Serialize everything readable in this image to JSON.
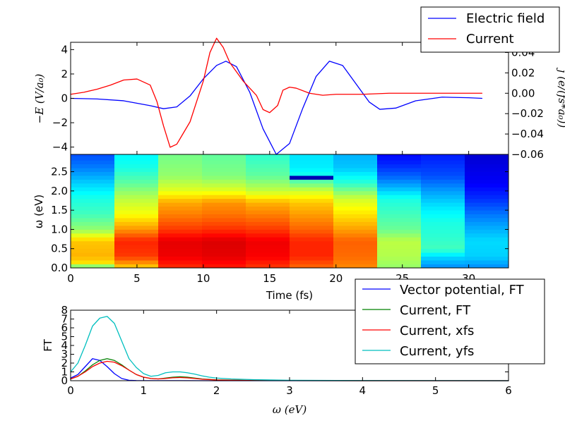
{
  "chart_data": [
    {
      "type": "line",
      "panel": "top",
      "xlim": [
        0,
        33
      ],
      "ylim": [
        -4.6,
        4.6
      ],
      "ylim_right": [
        -0.06,
        0.05
      ],
      "ylabel": "−E (V/a₀)",
      "ylabel_right": "j (e/(fs*a₀))",
      "yticks": [
        "4",
        "2",
        "0",
        "−2",
        "−4"
      ],
      "ytick_values": [
        4,
        2,
        0,
        -2,
        -4
      ],
      "yticks_right": [
        "0.04",
        "0.02",
        "0.00",
        "−0.02",
        "−0.04",
        "−0.06"
      ],
      "ytick_values_right": [
        0.04,
        0.02,
        0.0,
        -0.02,
        -0.04,
        -0.06
      ],
      "legend_position": "top-right",
      "series": [
        {
          "name": "Electric field",
          "color": "#0000ff",
          "axis": "left",
          "x": [
            0,
            2,
            4,
            6,
            7,
            8,
            9,
            10,
            11,
            11.7,
            12.5,
            13.5,
            14.5,
            15.5,
            16.5,
            17.5,
            18.5,
            19.5,
            20.5,
            21.5,
            22.5,
            23.3,
            24.5,
            26,
            28,
            30,
            31
          ],
          "y": [
            0,
            -0.05,
            -0.2,
            -0.6,
            -0.85,
            -0.7,
            0.2,
            1.6,
            2.7,
            3.05,
            2.6,
            0.5,
            -2.5,
            -4.6,
            -3.7,
            -0.8,
            1.8,
            3.05,
            2.7,
            1.2,
            -0.3,
            -0.9,
            -0.8,
            -0.2,
            0.1,
            0.05,
            0
          ]
        },
        {
          "name": "Current",
          "color": "#ff0000",
          "axis": "right",
          "x": [
            0,
            1,
            2,
            3,
            4,
            5,
            6,
            6.5,
            7,
            7.5,
            8,
            9,
            10,
            10.5,
            11,
            11.5,
            12,
            13,
            14,
            14.5,
            15,
            15.6,
            16,
            16.5,
            17,
            18,
            19,
            20,
            22,
            24,
            26,
            28,
            30,
            31
          ],
          "y": [
            -0.001,
            0.001,
            0.004,
            0.008,
            0.013,
            0.014,
            0.008,
            -0.008,
            -0.032,
            -0.053,
            -0.05,
            -0.028,
            0.012,
            0.04,
            0.054,
            0.045,
            0.03,
            0.012,
            -0.002,
            -0.016,
            -0.019,
            -0.012,
            0.003,
            0.006,
            0.005,
            0.0,
            -0.002,
            -0.001,
            -0.001,
            0.0,
            0.0,
            0.0,
            0.0,
            0.0
          ]
        }
      ]
    },
    {
      "type": "heatmap",
      "panel": "middle",
      "xlabel": "Time (fs)",
      "ylabel": "ω (eV)",
      "xlim": [
        0,
        33
      ],
      "ylim": [
        0,
        2.95
      ],
      "xticks": [
        "0",
        "5",
        "10",
        "15",
        "20",
        "25",
        "30"
      ],
      "xtick_values": [
        0,
        5,
        10,
        15,
        20,
        25,
        30
      ],
      "yticks": [
        "0.0",
        "0.5",
        "1.0",
        "1.5",
        "2.0",
        "2.5"
      ],
      "ytick_values": [
        0,
        0.5,
        1.0,
        1.5,
        2.0,
        2.5
      ],
      "colormap": "jet",
      "x_bin_edges": [
        0,
        3.3,
        6.6,
        9.9,
        13.2,
        16.5,
        19.8,
        23.1,
        26.4,
        29.7,
        33.0
      ],
      "y_bin_width": 0.1,
      "column_profiles": [
        {
          "y": [
            0,
            0.1,
            0.3,
            0.7,
            1.0,
            1.4,
            1.8,
            2.2,
            2.6,
            2.95
          ],
          "v": [
            0.4,
            0.64,
            0.7,
            0.68,
            0.52,
            0.44,
            0.4,
            0.33,
            0.25,
            0.2
          ]
        },
        {
          "y": [
            0,
            0.3,
            0.7,
            1.0,
            1.4,
            1.8,
            2.2,
            2.6,
            2.95
          ],
          "v": [
            0.66,
            0.82,
            0.84,
            0.73,
            0.62,
            0.56,
            0.47,
            0.4,
            0.37
          ]
        },
        {
          "y": [
            0,
            0.3,
            0.7,
            1.0,
            1.4,
            1.7,
            2.0,
            2.4,
            2.95
          ],
          "v": [
            0.83,
            0.89,
            0.9,
            0.82,
            0.75,
            0.71,
            0.6,
            0.52,
            0.49
          ]
        },
        {
          "y": [
            0,
            0.3,
            0.7,
            1.0,
            1.4,
            1.7,
            2.0,
            2.4,
            2.95
          ],
          "v": [
            0.85,
            0.9,
            0.91,
            0.83,
            0.76,
            0.73,
            0.6,
            0.5,
            0.47
          ]
        },
        {
          "y": [
            0,
            0.3,
            0.7,
            1.0,
            1.4,
            1.7,
            2.0,
            2.4,
            2.95
          ],
          "v": [
            0.82,
            0.88,
            0.89,
            0.82,
            0.75,
            0.7,
            0.57,
            0.47,
            0.42
          ]
        },
        {
          "y": [
            0,
            0.3,
            0.7,
            1.0,
            1.4,
            1.7,
            2.0,
            2.2,
            2.4,
            2.6,
            2.95
          ],
          "v": [
            0.77,
            0.84,
            0.84,
            0.78,
            0.72,
            0.68,
            0.58,
            0.48,
            0.4,
            0.36,
            0.35
          ]
        },
        {
          "y": [
            0,
            0.3,
            0.7,
            1.0,
            1.4,
            1.8,
            2.2,
            2.6,
            2.95
          ],
          "v": [
            0.74,
            0.77,
            0.78,
            0.72,
            0.65,
            0.58,
            0.42,
            0.32,
            0.3
          ]
        },
        {
          "y": [
            0,
            0.3,
            0.7,
            1.0,
            1.4,
            1.8,
            2.1,
            2.4,
            2.7,
            2.95
          ],
          "v": [
            0.52,
            0.55,
            0.56,
            0.48,
            0.44,
            0.4,
            0.3,
            0.22,
            0.16,
            0.13
          ]
        },
        {
          "y": [
            0,
            0.3,
            0.5,
            0.8,
            1.2,
            1.6,
            2.0,
            2.4,
            2.95
          ],
          "v": [
            0.26,
            0.34,
            0.44,
            0.42,
            0.4,
            0.35,
            0.28,
            0.2,
            0.15
          ]
        },
        {
          "y": [
            0,
            0.3,
            0.7,
            1.0,
            1.4,
            1.8,
            2.2,
            2.6,
            2.95
          ],
          "v": [
            0.26,
            0.33,
            0.34,
            0.3,
            0.24,
            0.17,
            0.12,
            0.1,
            0.08
          ]
        }
      ],
      "anomalies": [
        {
          "x_bin": 5,
          "y": 2.35,
          "v": 0.05
        }
      ]
    },
    {
      "type": "line",
      "panel": "bottom",
      "xlabel": "ω (eV)",
      "ylabel": "FT",
      "xlim": [
        0,
        6
      ],
      "ylim": [
        0,
        8
      ],
      "xticks": [
        "0",
        "1",
        "2",
        "3",
        "4",
        "5",
        "6"
      ],
      "xtick_values": [
        0,
        1,
        2,
        3,
        4,
        5,
        6
      ],
      "yticks": [
        "0",
        "1",
        "2",
        "3",
        "4",
        "5",
        "6",
        "7",
        "8"
      ],
      "ytick_values": [
        0,
        1,
        2,
        3,
        4,
        5,
        6,
        7,
        8
      ],
      "legend_position": "top-right",
      "series": [
        {
          "name": "Vector potential, FT",
          "color": "#0000ff",
          "x": [
            0,
            0.1,
            0.2,
            0.3,
            0.4,
            0.5,
            0.6,
            0.7,
            0.8,
            0.9,
            1.0,
            1.5,
            2,
            3,
            4,
            5,
            6
          ],
          "y": [
            0.3,
            0.7,
            1.6,
            2.5,
            2.3,
            1.6,
            0.8,
            0.25,
            0.05,
            0.02,
            0.01,
            0.01,
            0,
            0,
            0,
            0,
            0
          ]
        },
        {
          "name": "Current, FT",
          "color": "#008000",
          "x": [
            0,
            0.1,
            0.2,
            0.3,
            0.4,
            0.5,
            0.6,
            0.7,
            0.8,
            0.9,
            1.0,
            1.1,
            1.2,
            1.3,
            1.4,
            1.5,
            1.6,
            1.7,
            1.8,
            2.0,
            2.5,
            3,
            4,
            5,
            6
          ],
          "y": [
            0.2,
            0.5,
            1.1,
            1.8,
            2.3,
            2.5,
            2.3,
            1.8,
            1.2,
            0.7,
            0.4,
            0.25,
            0.2,
            0.3,
            0.4,
            0.45,
            0.4,
            0.3,
            0.2,
            0.1,
            0.03,
            0.01,
            0,
            0,
            0
          ]
        },
        {
          "name": "Current, xfs",
          "color": "#ff0000",
          "x": [
            0,
            0.1,
            0.2,
            0.3,
            0.4,
            0.5,
            0.6,
            0.7,
            0.8,
            0.9,
            1.0,
            1.1,
            1.2,
            1.3,
            1.4,
            1.5,
            1.6,
            1.7,
            1.8,
            2.0,
            2.5,
            3,
            4,
            5,
            6
          ],
          "y": [
            0.2,
            0.5,
            1.0,
            1.6,
            2.0,
            2.2,
            2.1,
            1.7,
            1.2,
            0.7,
            0.4,
            0.25,
            0.2,
            0.25,
            0.33,
            0.36,
            0.32,
            0.25,
            0.17,
            0.08,
            0.02,
            0.01,
            0,
            0,
            0
          ]
        },
        {
          "name": "Current, yfs",
          "color": "#00bfbf",
          "x": [
            0,
            0.1,
            0.2,
            0.3,
            0.4,
            0.5,
            0.6,
            0.7,
            0.8,
            0.9,
            1.0,
            1.1,
            1.2,
            1.3,
            1.4,
            1.5,
            1.6,
            1.7,
            1.8,
            1.9,
            2.0,
            2.2,
            2.5,
            3,
            4,
            5,
            6
          ],
          "y": [
            1.0,
            2.0,
            4.0,
            6.2,
            7.1,
            7.3,
            6.5,
            4.5,
            2.5,
            1.5,
            0.8,
            0.5,
            0.6,
            0.9,
            1.0,
            1.0,
            0.9,
            0.75,
            0.55,
            0.4,
            0.3,
            0.2,
            0.12,
            0.05,
            0.02,
            0.01,
            0
          ]
        }
      ]
    }
  ]
}
